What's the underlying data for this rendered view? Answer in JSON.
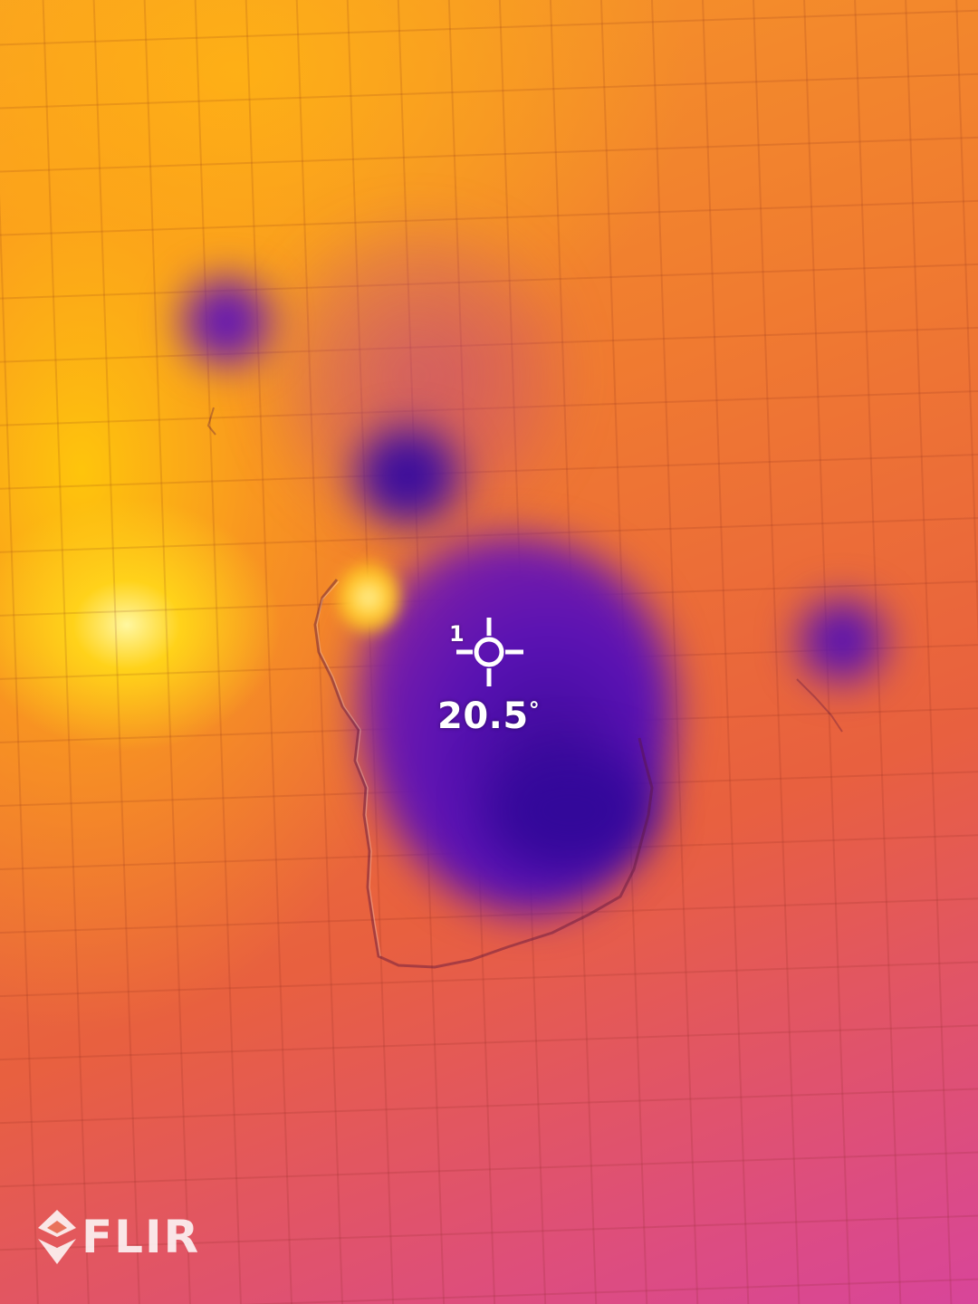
{
  "spot_meter": {
    "index": "1",
    "temperature": "20.5",
    "unit": "°"
  },
  "brand": {
    "logo_text": "FLIR",
    "mark_icon": "flir-diamond-icon"
  },
  "palette": {
    "hot": "#ffd21a",
    "warm": "#f07b30",
    "mid": "#e8603f",
    "cool": "#7a1ea8",
    "cold": "#33089a"
  },
  "icons": {
    "spot": "crosshair-icon"
  }
}
